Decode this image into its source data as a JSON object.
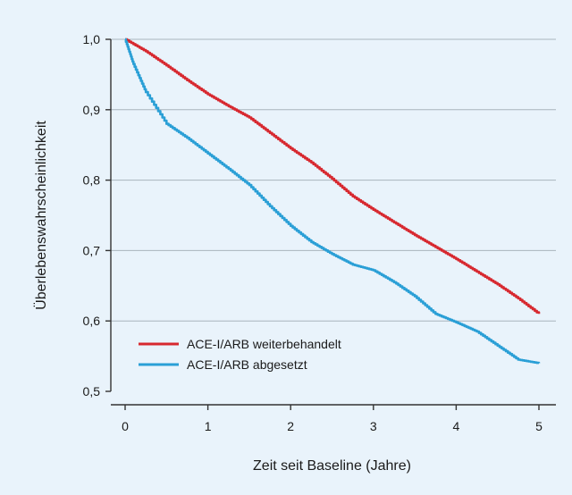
{
  "colors": {
    "background": "#e9f3fb",
    "grid": "#a9b4bd",
    "axis": "#333333",
    "series_continued": "#d7282f",
    "series_stopped": "#2a9fd6"
  },
  "chart_data": {
    "type": "line",
    "title": "",
    "xlabel": "Zeit seit Baseline (Jahre)",
    "ylabel": "Überlebenswahrscheinlichkeit",
    "xlim": [
      0,
      5
    ],
    "ylim": [
      0.5,
      1.0
    ],
    "x_ticks": [
      0,
      1,
      2,
      3,
      4,
      5
    ],
    "x_tick_labels": [
      "0",
      "1",
      "2",
      "3",
      "4",
      "5"
    ],
    "y_ticks": [
      0.5,
      0.6,
      0.7,
      0.8,
      0.9,
      1.0
    ],
    "y_tick_labels": [
      "0,5",
      "0,6",
      "0,7",
      "0,8",
      "0,9",
      "1,0"
    ],
    "grid": "horizontal",
    "legend_position": "bottom-left",
    "series": [
      {
        "name": "ACE-I/ARB weiterbehandelt",
        "color": "#d7282f",
        "x": [
          0,
          0.25,
          0.5,
          0.75,
          1.0,
          1.25,
          1.5,
          1.75,
          2.0,
          2.25,
          2.5,
          2.75,
          3.0,
          3.25,
          3.5,
          3.75,
          4.0,
          4.25,
          4.5,
          4.75,
          5.0
        ],
        "y": [
          1.0,
          0.983,
          0.963,
          0.942,
          0.922,
          0.905,
          0.889,
          0.867,
          0.845,
          0.825,
          0.802,
          0.777,
          0.758,
          0.74,
          0.722,
          0.705,
          0.688,
          0.67,
          0.652,
          0.632,
          0.61
        ]
      },
      {
        "name": "ACE-I/ARB abgesetzt",
        "color": "#2a9fd6",
        "x": [
          0,
          0.1,
          0.25,
          0.5,
          0.75,
          1.0,
          1.25,
          1.5,
          1.75,
          2.0,
          2.25,
          2.5,
          2.75,
          3.0,
          3.25,
          3.5,
          3.75,
          4.0,
          4.25,
          4.5,
          4.75,
          5.0
        ],
        "y": [
          1.0,
          0.965,
          0.925,
          0.88,
          0.86,
          0.838,
          0.816,
          0.793,
          0.763,
          0.735,
          0.712,
          0.695,
          0.68,
          0.672,
          0.655,
          0.635,
          0.61,
          0.598,
          0.585,
          0.565,
          0.545,
          0.54
        ]
      }
    ]
  }
}
